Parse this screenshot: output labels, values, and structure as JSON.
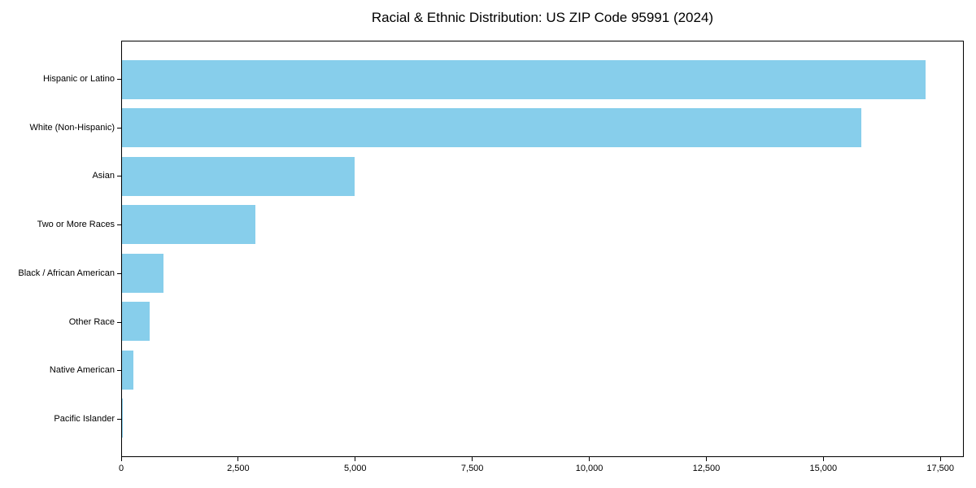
{
  "chart_data": {
    "type": "bar",
    "orientation": "horizontal",
    "title": "Racial & Ethnic Distribution: US ZIP Code 95991 (2024)",
    "xlabel": "",
    "ylabel": "",
    "categories": [
      "Hispanic or Latino",
      "White (Non-Hispanic)",
      "Asian",
      "Two or More Races",
      "Black / African American",
      "Other Race",
      "Native American",
      "Pacific Islander"
    ],
    "values": [
      17160,
      15790,
      4970,
      2845,
      885,
      595,
      240,
      20
    ],
    "xlim": [
      0,
      18000
    ],
    "x_ticks": [
      0,
      2500,
      5000,
      7500,
      10000,
      12500,
      15000,
      17500
    ],
    "x_tick_labels": [
      "0",
      "2,500",
      "5,000",
      "7,500",
      "10,000",
      "12,500",
      "15,000",
      "17,500"
    ],
    "bar_color": "#87CEEB",
    "grid": false,
    "legend": null,
    "frame": "full-box"
  }
}
